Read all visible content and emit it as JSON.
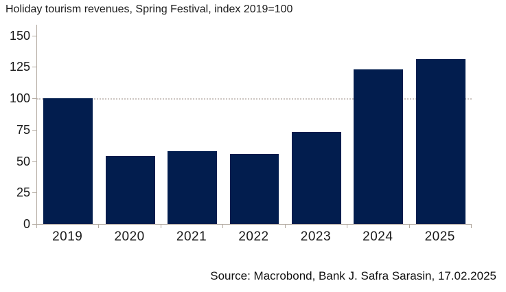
{
  "header": {
    "title": "Holiday tourism revenues, Spring Festival, index 2019=100"
  },
  "footer": {
    "source": "Source: Macrobond, Bank J. Safra Sarasin, 17.02.2025"
  },
  "chart_data": {
    "type": "bar",
    "title": "Holiday tourism revenues, Spring Festival, index 2019=100",
    "categories": [
      "2019",
      "2020",
      "2021",
      "2022",
      "2023",
      "2024",
      "2025"
    ],
    "values": [
      100,
      54,
      58,
      56,
      73,
      123,
      131
    ],
    "xlabel": "",
    "ylabel": "",
    "ylim": [
      0,
      158.5
    ],
    "yticks": [
      0,
      25,
      50,
      75,
      100,
      125,
      150
    ],
    "reference_line_y": 100,
    "grid": "single dotted horizontal reference line at y=100",
    "legend_position": "none",
    "colors": {
      "bar": "#021d4e",
      "axis": "#b3aaa1",
      "reference_line": "#ccc5c0",
      "text": "#1a1a1a"
    }
  }
}
